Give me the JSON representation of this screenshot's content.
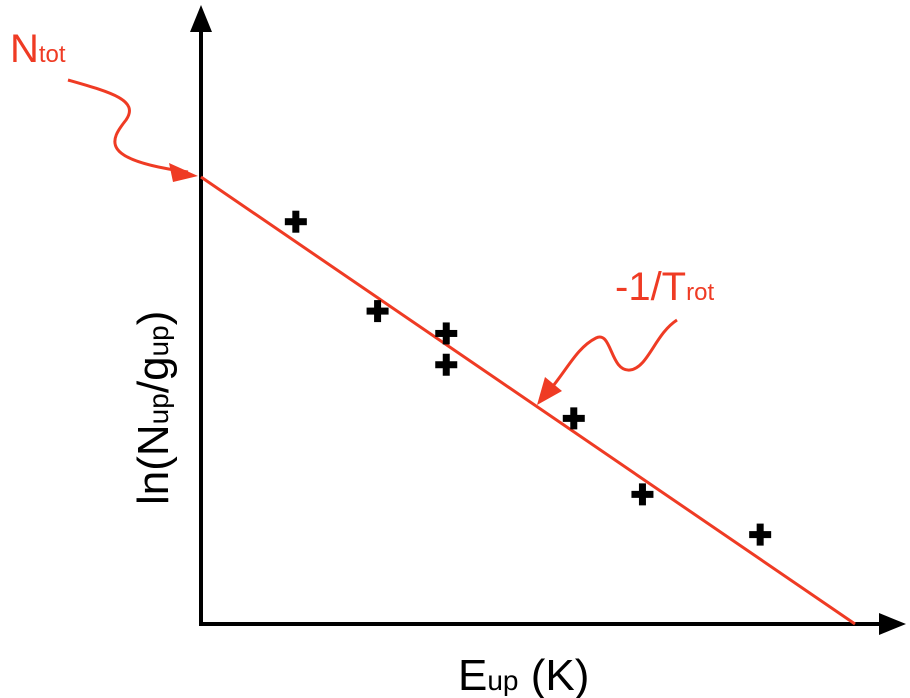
{
  "colors": {
    "axis": "#000000",
    "fit_line": "#ef3b24",
    "annotation": "#ef3b24",
    "points": "#000000"
  },
  "axes": {
    "xlabel_main": "E",
    "xlabel_sub": "up",
    "xlabel_unit": " (K)",
    "ylabel_pre": "ln(N",
    "ylabel_sub1": "up",
    "ylabel_mid": "/g",
    "ylabel_sub2": "up",
    "ylabel_post": ")"
  },
  "annotations": {
    "intercept_main": "N",
    "intercept_sub": "tot",
    "slope_main": "-1/T",
    "slope_sub": "rot"
  },
  "chart_data": {
    "type": "scatter",
    "xlim": [
      0,
      100
    ],
    "ylim": [
      0,
      100
    ],
    "grid": false,
    "ticks": "none",
    "series": [
      {
        "kind": "points",
        "marker": "plus",
        "x": [
          14.5,
          27,
          37.5,
          37.5,
          57,
          67.5,
          85.5
        ],
        "y": [
          90,
          70,
          65,
          58,
          46,
          29,
          20
        ]
      },
      {
        "kind": "line",
        "x": [
          0,
          100
        ],
        "y": [
          100,
          0
        ]
      }
    ]
  }
}
